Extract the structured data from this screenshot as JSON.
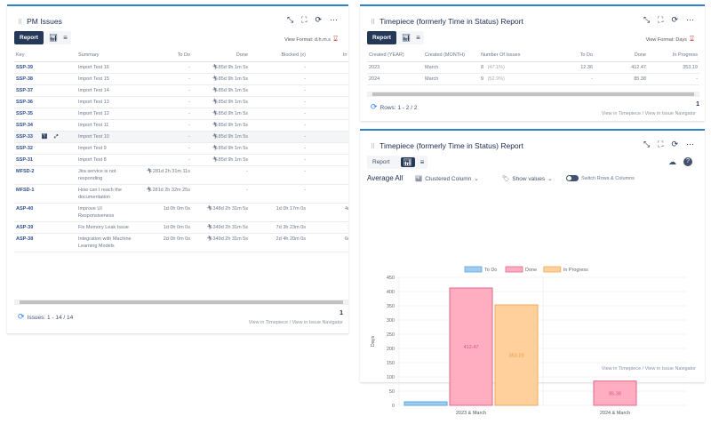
{
  "left_panel": {
    "title": "PM Issues",
    "report_label": "Report",
    "view_format": "View Format: d.h.m.s",
    "columns": [
      "Key",
      "Summary",
      "To Do",
      "Done",
      "Blocked (x)",
      "In Progress"
    ],
    "rows": [
      {
        "key": "SSP-39",
        "summary": "Import Test 16",
        "todo": "-",
        "done": "85d 9h 1m 5s",
        "blocked": "-",
        "inprogress": ""
      },
      {
        "key": "SSP-38",
        "summary": "Import Test 15",
        "todo": "-",
        "done": "85d 9h 1m 5s",
        "blocked": "-",
        "inprogress": ""
      },
      {
        "key": "SSP-37",
        "summary": "Import Test 14",
        "todo": "-",
        "done": "85d 9h 1m 5s",
        "blocked": "-",
        "inprogress": ""
      },
      {
        "key": "SSP-36",
        "summary": "Import Test 13",
        "todo": "-",
        "done": "85d 9h 1m 5s",
        "blocked": "-",
        "inprogress": ""
      },
      {
        "key": "SSP-35",
        "summary": "Import Test 12",
        "todo": "-",
        "done": "85d 9h 1m 5s",
        "blocked": "-",
        "inprogress": ""
      },
      {
        "key": "SSP-34",
        "summary": "Import Test 11",
        "todo": "-",
        "done": "85d 9h 1m 5s",
        "blocked": "-",
        "inprogress": ""
      },
      {
        "key": "SSP-33",
        "summary": "Import Test 10",
        "todo": "-",
        "done": "85d 9h 1m 5s",
        "blocked": "-",
        "inprogress": ""
      },
      {
        "key": "SSP-32",
        "summary": "Import Test 9",
        "todo": "-",
        "done": "85d 9h 1m 5s",
        "blocked": "-",
        "inprogress": ""
      },
      {
        "key": "SSP-31",
        "summary": "Import Test 8",
        "todo": "-",
        "done": "85d 9h 1m 5s",
        "blocked": "-",
        "inprogress": ""
      },
      {
        "key": "MFSD-2",
        "summary": "Jira service is not responding",
        "todo": "281d 2h 31m 11s",
        "done": "-",
        "blocked": "-",
        "inprogress": ""
      },
      {
        "key": "MFSD-1",
        "summary": "How can I reach the documentation",
        "todo": "281d 2h 32m 25s",
        "done": "-",
        "blocked": "-",
        "inprogress": ""
      },
      {
        "key": "ASP-40",
        "summary": "Improve UI Responsiveness",
        "todo": "1d 0h 0m 0s",
        "done": "348d 2h 31m 5s",
        "blocked": "1d 0h 17m 0s",
        "inprogress": "4d 6h 13m"
      },
      {
        "key": "ASP-39",
        "summary": "Fix Memory Leak Issue",
        "todo": "1d 0h 0m 0s",
        "done": "349d 2h 31m 5s",
        "blocked": "7d 3h 23m 0s",
        "inprogress": "1d 3h 7m"
      },
      {
        "key": "ASP-38",
        "summary": "Integration with Machine Learning Models",
        "todo": "2d 0h 0m 0s",
        "done": "349d 2h 31m 5s",
        "blocked": "2d 4h 20m 0s",
        "inprogress": "6d 2h 10m"
      }
    ],
    "footer": "Issues: 1 - 14 / 14",
    "page": "1",
    "link_timepiece": "View in Timepiece",
    "link_sep": "/",
    "link_navigator": "View in Issue Navigator"
  },
  "right_top": {
    "title": "Timepiece (formerly Time in Status) Report",
    "report_label": "Report",
    "view_format": "View Format: Days",
    "columns": [
      "Created (YEAR)",
      "Created (MONTH)",
      "Number Of Issues",
      "To Do",
      "Done",
      "In Progress"
    ],
    "rows": [
      {
        "year": "2023",
        "month": "March",
        "count": "8",
        "pct": "(47.1%)",
        "todo": "12.36",
        "done": "412.47",
        "inprogress": "353.19"
      },
      {
        "year": "2024",
        "month": "March",
        "count": "9",
        "pct": "(52.9%)",
        "todo": "-",
        "done": "85.38",
        "inprogress": "-"
      }
    ],
    "footer": "Rows: 1 - 2 / 2",
    "page": "1",
    "link_timepiece": "View in Timepiece",
    "link_sep": "/",
    "link_navigator": "View in Issue Navigator"
  },
  "right_bottom": {
    "title": "Timepiece (formerly Time in Status) Report",
    "report_label": "Report",
    "average": "Average All",
    "chart_type_label": "Clustered Column",
    "show_values": "Show values",
    "switch_label": "Switch Rows & Columns",
    "link_timepiece": "View in Timepiece",
    "link_sep": "/",
    "link_navigator": "View in Issue Navigator"
  },
  "chart_data": {
    "type": "bar",
    "categories": [
      "2023 & March",
      "2024 & March"
    ],
    "series": [
      {
        "name": "To Do",
        "values": [
          12.36,
          null
        ],
        "color": "#9fcdf0",
        "border": "#5aa6df",
        "labels": [
          false,
          false
        ]
      },
      {
        "name": "Done",
        "values": [
          412.47,
          85.38
        ],
        "color": "#ffadc1",
        "border": "#e0698a",
        "labels": [
          true,
          true
        ]
      },
      {
        "name": "In Progress",
        "values": [
          353.19,
          null
        ],
        "color": "#ffcf9c",
        "border": "#f0a95a",
        "labels": [
          true,
          false
        ]
      }
    ],
    "value_labels": [
      "412.47",
      "353.19",
      "85.38"
    ],
    "ylabel": "Days",
    "ylim": [
      0,
      450
    ],
    "yticks": [
      "0",
      "50",
      "100",
      "150",
      "200",
      "250",
      "300",
      "350",
      "400",
      "450"
    ],
    "grid": true,
    "legend": "top"
  }
}
